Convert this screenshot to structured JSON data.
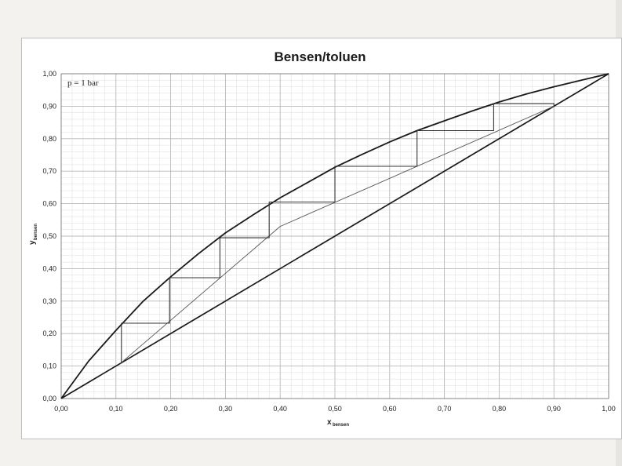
{
  "chart_data": {
    "type": "line",
    "title": "Bensen/toluen",
    "xlabel": "x",
    "xlabel_sub": "bensen",
    "ylabel": "y",
    "ylabel_sub": "bensen",
    "xlim": [
      0,
      1
    ],
    "ylim": [
      0,
      1
    ],
    "grid": true,
    "annotation": "p = 1 bar",
    "x_ticks": [
      "0,00",
      "0,10",
      "0,20",
      "0,30",
      "0,40",
      "0,50",
      "0,60",
      "0,70",
      "0,80",
      "0,90",
      "1,00"
    ],
    "y_ticks": [
      "0,00",
      "0,10",
      "0,20",
      "0,30",
      "0,40",
      "0,50",
      "0,60",
      "0,70",
      "0,80",
      "0,90",
      "1,00"
    ],
    "series": [
      {
        "role": "equilibrium",
        "color": "#1a1a1a",
        "points": [
          [
            0,
            0
          ],
          [
            0.05,
            0.115
          ],
          [
            0.1,
            0.21
          ],
          [
            0.15,
            0.3
          ],
          [
            0.2,
            0.375
          ],
          [
            0.25,
            0.445
          ],
          [
            0.3,
            0.51
          ],
          [
            0.35,
            0.565
          ],
          [
            0.4,
            0.618
          ],
          [
            0.45,
            0.665
          ],
          [
            0.5,
            0.712
          ],
          [
            0.55,
            0.752
          ],
          [
            0.6,
            0.79
          ],
          [
            0.65,
            0.825
          ],
          [
            0.7,
            0.855
          ],
          [
            0.75,
            0.885
          ],
          [
            0.8,
            0.913
          ],
          [
            0.85,
            0.938
          ],
          [
            0.9,
            0.96
          ],
          [
            0.95,
            0.98
          ],
          [
            1,
            1
          ]
        ]
      },
      {
        "role": "diagonal",
        "color": "#1a1a1a",
        "points": [
          [
            0,
            0
          ],
          [
            1,
            1
          ]
        ]
      },
      {
        "role": "operating-line-lower",
        "color": "#555555",
        "points": [
          [
            0.108,
            0.108
          ],
          [
            0.4,
            0.53
          ]
        ]
      },
      {
        "role": "operating-line-upper",
        "color": "#555555",
        "points": [
          [
            0.4,
            0.53
          ],
          [
            0.9,
            0.9
          ]
        ]
      },
      {
        "role": "stages",
        "color": "#333333",
        "points": [
          [
            0.9,
            0.9
          ],
          [
            0.9,
            0.908
          ],
          [
            0.79,
            0.908
          ],
          [
            0.79,
            0.825
          ],
          [
            0.65,
            0.825
          ],
          [
            0.65,
            0.715
          ],
          [
            0.5,
            0.715
          ],
          [
            0.5,
            0.605
          ],
          [
            0.38,
            0.605
          ],
          [
            0.38,
            0.495
          ],
          [
            0.29,
            0.495
          ],
          [
            0.29,
            0.372
          ],
          [
            0.198,
            0.372
          ],
          [
            0.198,
            0.232
          ],
          [
            0.11,
            0.232
          ],
          [
            0.11,
            0.108
          ]
        ]
      }
    ]
  },
  "colors": {
    "grid_major": "#b8b8b8",
    "grid_minor": "#dcdcdc"
  }
}
